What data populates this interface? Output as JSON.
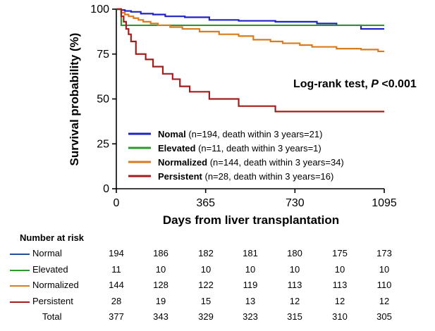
{
  "chart_data": {
    "type": "line",
    "subtype": "kaplan-meier",
    "xlabel": "Days from liver transplantation",
    "ylabel": "Survival probability (%)",
    "xlim": [
      0,
      1095
    ],
    "ylim": [
      0,
      100
    ],
    "xticks": [
      0,
      365,
      730,
      1095
    ],
    "yticks": [
      0,
      25,
      50,
      75,
      100
    ],
    "annotation": {
      "prefix": "Log-rank test, ",
      "italic": "P",
      "suffix": " <0.001"
    },
    "legend_position": "bottom-left",
    "series": [
      {
        "name": "Nomal",
        "detail": "(n=194, death within 3 years=21)",
        "color": "#1f22c4",
        "x": [
          0,
          20,
          35,
          60,
          100,
          150,
          200,
          280,
          380,
          500,
          650,
          820,
          900,
          1000,
          1095
        ],
        "y": [
          100,
          99.5,
          99,
          98.5,
          97.5,
          97,
          96,
          95.5,
          94,
          93.5,
          93,
          92,
          91,
          89,
          89
        ]
      },
      {
        "name": "Elevated",
        "detail": "(n=11, death within 3 years=1)",
        "color": "#2e9a2e",
        "x": [
          0,
          20,
          1095
        ],
        "y": [
          100,
          91,
          91
        ]
      },
      {
        "name": "Normalized",
        "detail": "(n=144, death within 3 years=34)",
        "color": "#d97b1f",
        "x": [
          0,
          20,
          35,
          50,
          70,
          90,
          110,
          140,
          170,
          220,
          270,
          340,
          420,
          500,
          560,
          630,
          680,
          750,
          800,
          900,
          1000,
          1070,
          1095
        ],
        "y": [
          100,
          98,
          97,
          96,
          95,
          94,
          93,
          92,
          91,
          90,
          89,
          87.5,
          86,
          85,
          83,
          82,
          81,
          80,
          79,
          78,
          77.5,
          76.5,
          76.5
        ]
      },
      {
        "name": "Persistent",
        "detail": "(n=28, death within 3 years=16)",
        "color": "#a51c1c",
        "x": [
          0,
          20,
          30,
          40,
          50,
          60,
          80,
          120,
          150,
          190,
          230,
          260,
          300,
          380,
          500,
          650,
          1095
        ],
        "y": [
          100,
          96,
          93,
          89,
          86,
          82,
          75,
          72,
          68,
          64,
          61,
          57,
          54,
          50,
          46,
          43,
          43
        ]
      }
    ]
  },
  "risk_table": {
    "title": "Number at risk",
    "rows": [
      {
        "label": "Normal",
        "color": "#1f4e9a",
        "values": [
          "194",
          "186",
          "182",
          "181",
          "180",
          "175",
          "173"
        ]
      },
      {
        "label": "Elevated",
        "color": "#2e9a2e",
        "values": [
          "11",
          "10",
          "10",
          "10",
          "10",
          "10",
          "10"
        ]
      },
      {
        "label": "Normalized",
        "color": "#d97b1f",
        "values": [
          "144",
          "128",
          "122",
          "119",
          "113",
          "113",
          "110"
        ]
      },
      {
        "label": "Persistent",
        "color": "#a51c1c",
        "values": [
          "28",
          "19",
          "15",
          "13",
          "12",
          "12",
          "12"
        ]
      },
      {
        "label": "Total",
        "color": "",
        "values": [
          "377",
          "343",
          "329",
          "323",
          "315",
          "310",
          "305"
        ]
      }
    ]
  }
}
